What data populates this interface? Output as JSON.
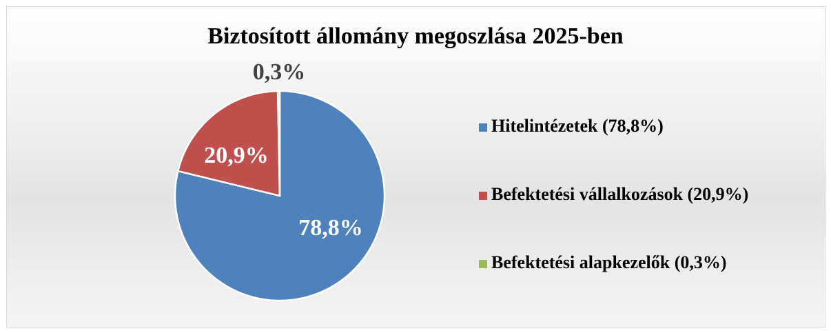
{
  "chart_data": {
    "type": "pie",
    "title": "Biztosított állomány megoszlása 2025-ben",
    "categories": [
      "Hitelintézetek (78,8%)",
      "Befektetési vállalkozások (20,9%)",
      "Befektetési alapkezelők (0,3%)"
    ],
    "values": [
      78.8,
      20.9,
      0.3
    ],
    "value_labels": [
      "78,8%",
      "20,9%",
      "0,3%"
    ],
    "colors": [
      "#4f81bd",
      "#c0504d",
      "#9bbb59"
    ],
    "legend": "right"
  }
}
